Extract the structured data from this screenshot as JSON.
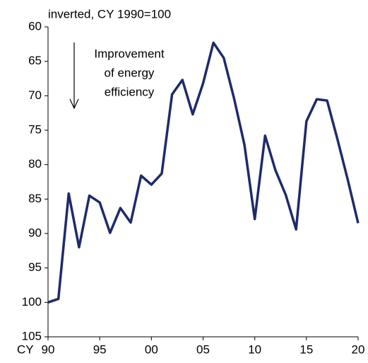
{
  "chart_data": {
    "type": "line",
    "title": "inverted, CY 1990=100",
    "x_label": "CY",
    "annotation": [
      "Improvement",
      "of energy",
      "efficiency"
    ],
    "x": [
      1990,
      1991,
      1992,
      1993,
      1994,
      1995,
      1996,
      1997,
      1998,
      1999,
      2000,
      2001,
      2002,
      2003,
      2004,
      2005,
      2006,
      2007,
      2008,
      2009,
      2010,
      2011,
      2012,
      2013,
      2014,
      2015,
      2016,
      2017,
      2018,
      2019,
      2020
    ],
    "series": [
      {
        "color": "#1f2a6b",
        "values": [
          100,
          99.5,
          84.2,
          92,
          84.5,
          85.5,
          89.9,
          86.3,
          88.4,
          81.6,
          82.9,
          81.3,
          69.8,
          67.7,
          72.7,
          68.2,
          62.3,
          64.5,
          70.4,
          77.1,
          87.9,
          75.8,
          80.8,
          84.4,
          89.4,
          73.7,
          70.5,
          70.7,
          76.3,
          82.2,
          88.5
        ]
      }
    ],
    "xlim": [
      1990,
      2020
    ],
    "xticks": [
      {
        "value": 1990,
        "label": "90"
      },
      {
        "value": 1995,
        "label": "95"
      },
      {
        "value": 2000,
        "label": "00"
      },
      {
        "value": 2005,
        "label": "05"
      },
      {
        "value": 2010,
        "label": "10"
      },
      {
        "value": 2015,
        "label": "15"
      },
      {
        "value": 2020,
        "label": "20"
      }
    ],
    "ylim": [
      60,
      105
    ],
    "inverted": true,
    "yticks": [
      60,
      65,
      70,
      75,
      80,
      85,
      90,
      95,
      100,
      105
    ],
    "grid": false
  }
}
